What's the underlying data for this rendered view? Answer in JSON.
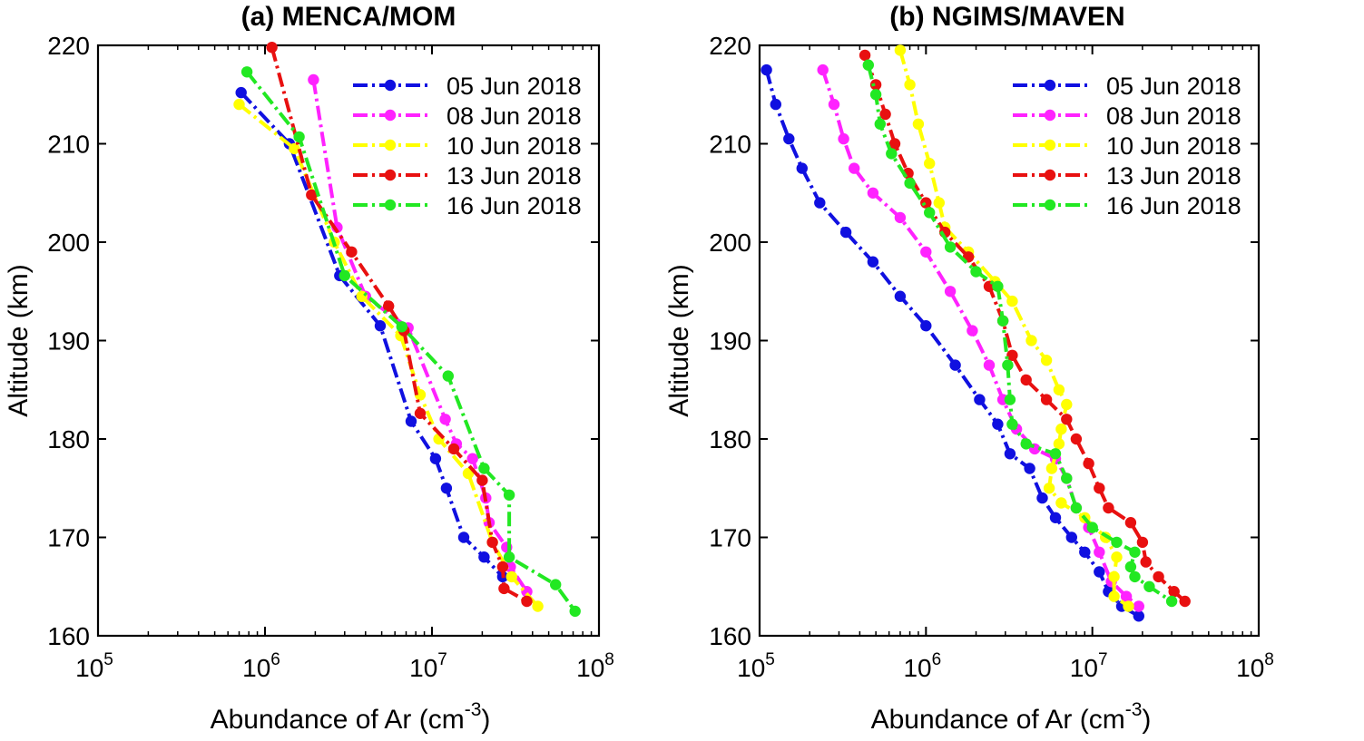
{
  "chart_data": [
    {
      "type": "line",
      "panel": "a",
      "title": "(a) MENCA/MOM",
      "xlabel": "Abundance of Ar (cm",
      "xlabel_sup": "-3",
      "xlabel_close": ")",
      "ylabel": "Altitude (km)",
      "xscale": "log",
      "xlim": [
        100000,
        100000000
      ],
      "ylim": [
        160,
        220
      ],
      "x_ticks": [
        {
          "base": "10",
          "exp": "5"
        },
        {
          "base": "10",
          "exp": "6"
        },
        {
          "base": "10",
          "exp": "7"
        },
        {
          "base": "10",
          "exp": "8"
        }
      ],
      "y_ticks": [
        "160",
        "170",
        "180",
        "190",
        "200",
        "210",
        "220"
      ],
      "legend_position": "top-right",
      "series": [
        {
          "name": "05 Jun 2018",
          "color": "#1010e0",
          "points": [
            [
              720000,
              215.2
            ],
            [
              1400000,
              210
            ],
            [
              2800000,
              196.6
            ],
            [
              4900000,
              191.5
            ],
            [
              7500000,
              181.8
            ],
            [
              10500000,
              178
            ],
            [
              12200000,
              175
            ],
            [
              15500000,
              170
            ],
            [
              20500000,
              168
            ],
            [
              26500000,
              166
            ]
          ]
        },
        {
          "name": "08 Jun 2018",
          "color": "#ff22ff",
          "points": [
            [
              1950000,
              216.5
            ],
            [
              2700000,
              201.5
            ],
            [
              4000000,
              194.5
            ],
            [
              7200000,
              191.3
            ],
            [
              12000000,
              182
            ],
            [
              14000000,
              179.5
            ],
            [
              17500000,
              178
            ],
            [
              21000000,
              174
            ],
            [
              22000000,
              171.5
            ],
            [
              28000000,
              169
            ],
            [
              29500000,
              167
            ],
            [
              37000000,
              164.5
            ]
          ]
        },
        {
          "name": "10 Jun 2018",
          "color": "#ffff00",
          "points": [
            [
              700000,
              214
            ],
            [
              1500000,
              209.5
            ],
            [
              2600000,
              200
            ],
            [
              3800000,
              194.5
            ],
            [
              6500000,
              190.5
            ],
            [
              8500000,
              184.5
            ],
            [
              11000000,
              180
            ],
            [
              16500000,
              176.5
            ],
            [
              23000000,
              169.5
            ],
            [
              30000000,
              166
            ],
            [
              43000000,
              163
            ]
          ]
        },
        {
          "name": "13 Jun 2018",
          "color": "#e81010",
          "points": [
            [
              1100000,
              219.8
            ],
            [
              1900000,
              204.8
            ],
            [
              3300000,
              199
            ],
            [
              5500000,
              193.5
            ],
            [
              6800000,
              191
            ],
            [
              8500000,
              182.6
            ],
            [
              13500000,
              179
            ],
            [
              20000000,
              175.8
            ],
            [
              23000000,
              169.5
            ],
            [
              26500000,
              167
            ],
            [
              27000000,
              164.8
            ],
            [
              37000000,
              163.5
            ]
          ]
        },
        {
          "name": "16 Jun 2018",
          "color": "#22e822",
          "points": [
            [
              780000,
              217.3
            ],
            [
              1600000,
              210.7
            ],
            [
              3000000,
              196.6
            ],
            [
              6600000,
              191.4
            ],
            [
              12500000,
              186.4
            ],
            [
              20500000,
              177
            ],
            [
              29000000,
              174.3
            ],
            [
              29000000,
              168
            ],
            [
              55000000,
              165.2
            ],
            [
              72000000,
              162.5
            ]
          ]
        }
      ]
    },
    {
      "type": "line",
      "panel": "b",
      "title": "(b) NGIMS/MAVEN",
      "xlabel": "Abundance of Ar (cm",
      "xlabel_sup": "-3",
      "xlabel_close": ")",
      "ylabel": "Altitude (km)",
      "xscale": "log",
      "xlim": [
        100000,
        100000000
      ],
      "ylim": [
        160,
        220
      ],
      "x_ticks": [
        {
          "base": "10",
          "exp": "5"
        },
        {
          "base": "10",
          "exp": "6"
        },
        {
          "base": "10",
          "exp": "7"
        },
        {
          "base": "10",
          "exp": "8"
        }
      ],
      "y_ticks": [
        "160",
        "170",
        "180",
        "190",
        "200",
        "210",
        "220"
      ],
      "legend_position": "top-right",
      "series": [
        {
          "name": "05 Jun 2018",
          "color": "#1010e0",
          "points": [
            [
              110000,
              217.5
            ],
            [
              125000,
              214
            ],
            [
              150000,
              210.5
            ],
            [
              180000,
              207.5
            ],
            [
              230000,
              204
            ],
            [
              330000,
              201
            ],
            [
              480000,
              198
            ],
            [
              700000,
              194.5
            ],
            [
              1000000,
              191.5
            ],
            [
              1500000,
              187.5
            ],
            [
              2100000,
              184
            ],
            [
              2700000,
              181.5
            ],
            [
              3200000,
              178.5
            ],
            [
              4200000,
              177
            ],
            [
              5000000,
              174
            ],
            [
              6000000,
              172
            ],
            [
              7500000,
              170
            ],
            [
              9000000,
              168.5
            ],
            [
              11000000,
              166.5
            ],
            [
              12500000,
              164.5
            ],
            [
              15000000,
              163
            ],
            [
              19000000,
              162
            ]
          ]
        },
        {
          "name": "08 Jun 2018",
          "color": "#ff22ff",
          "points": [
            [
              240000,
              217.5
            ],
            [
              280000,
              214
            ],
            [
              320000,
              210.5
            ],
            [
              370000,
              207.5
            ],
            [
              480000,
              205
            ],
            [
              700000,
              202.5
            ],
            [
              1000000,
              199
            ],
            [
              1400000,
              195
            ],
            [
              1900000,
              191
            ],
            [
              2400000,
              187.5
            ],
            [
              2900000,
              184
            ],
            [
              3500000,
              181
            ],
            [
              4500000,
              179
            ],
            [
              6000000,
              178
            ],
            [
              7000000,
              176
            ],
            [
              8000000,
              173
            ],
            [
              9500000,
              171
            ],
            [
              11000000,
              168.5
            ],
            [
              13000000,
              165.5
            ],
            [
              16000000,
              164
            ],
            [
              19000000,
              163
            ]
          ]
        },
        {
          "name": "10 Jun 2018",
          "color": "#ffff00",
          "points": [
            [
              700000,
              219.5
            ],
            [
              800000,
              216
            ],
            [
              900000,
              212
            ],
            [
              1050000,
              208
            ],
            [
              1200000,
              204
            ],
            [
              1300000,
              201.5
            ],
            [
              1800000,
              199
            ],
            [
              2600000,
              196
            ],
            [
              3300000,
              194
            ],
            [
              4300000,
              190
            ],
            [
              5300000,
              188
            ],
            [
              6300000,
              185
            ],
            [
              7000000,
              183.5
            ],
            [
              6500000,
              181
            ],
            [
              6300000,
              179.5
            ],
            [
              5700000,
              177
            ],
            [
              5500000,
              175
            ],
            [
              6500000,
              173.5
            ],
            [
              9000000,
              172
            ],
            [
              12000000,
              170
            ],
            [
              14000000,
              168
            ],
            [
              13500000,
              166
            ],
            [
              13500000,
              164
            ],
            [
              16500000,
              163
            ]
          ]
        },
        {
          "name": "13 Jun 2018",
          "color": "#e81010",
          "points": [
            [
              430000,
              219
            ],
            [
              500000,
              216
            ],
            [
              570000,
              213
            ],
            [
              650000,
              210
            ],
            [
              780000,
              207
            ],
            [
              1000000,
              204
            ],
            [
              1300000,
              201
            ],
            [
              1800000,
              198.5
            ],
            [
              2400000,
              195.5
            ],
            [
              2900000,
              192
            ],
            [
              3300000,
              188.5
            ],
            [
              4000000,
              186
            ],
            [
              5300000,
              184
            ],
            [
              7000000,
              182
            ],
            [
              8000000,
              180
            ],
            [
              9500000,
              177.5
            ],
            [
              11000000,
              175
            ],
            [
              12500000,
              173
            ],
            [
              17000000,
              171.5
            ],
            [
              20000000,
              169.5
            ],
            [
              21000000,
              167.5
            ],
            [
              25000000,
              166
            ],
            [
              31000000,
              164.5
            ],
            [
              36000000,
              163.5
            ]
          ]
        },
        {
          "name": "16 Jun 2018",
          "color": "#22e822",
          "points": [
            [
              450000,
              218
            ],
            [
              500000,
              215
            ],
            [
              530000,
              212
            ],
            [
              620000,
              209
            ],
            [
              800000,
              206
            ],
            [
              1050000,
              203
            ],
            [
              1400000,
              199.5
            ],
            [
              2000000,
              197
            ],
            [
              2700000,
              195.5
            ],
            [
              2900000,
              192
            ],
            [
              3100000,
              187.5
            ],
            [
              3200000,
              184
            ],
            [
              3300000,
              181.5
            ],
            [
              4000000,
              179.5
            ],
            [
              6000000,
              178.5
            ],
            [
              7000000,
              176
            ],
            [
              8000000,
              173
            ],
            [
              10000000,
              171
            ],
            [
              14000000,
              169.5
            ],
            [
              18000000,
              168.5
            ],
            [
              17000000,
              167
            ],
            [
              18000000,
              166
            ],
            [
              22000000,
              165
            ],
            [
              30000000,
              163.5
            ]
          ]
        }
      ]
    }
  ]
}
